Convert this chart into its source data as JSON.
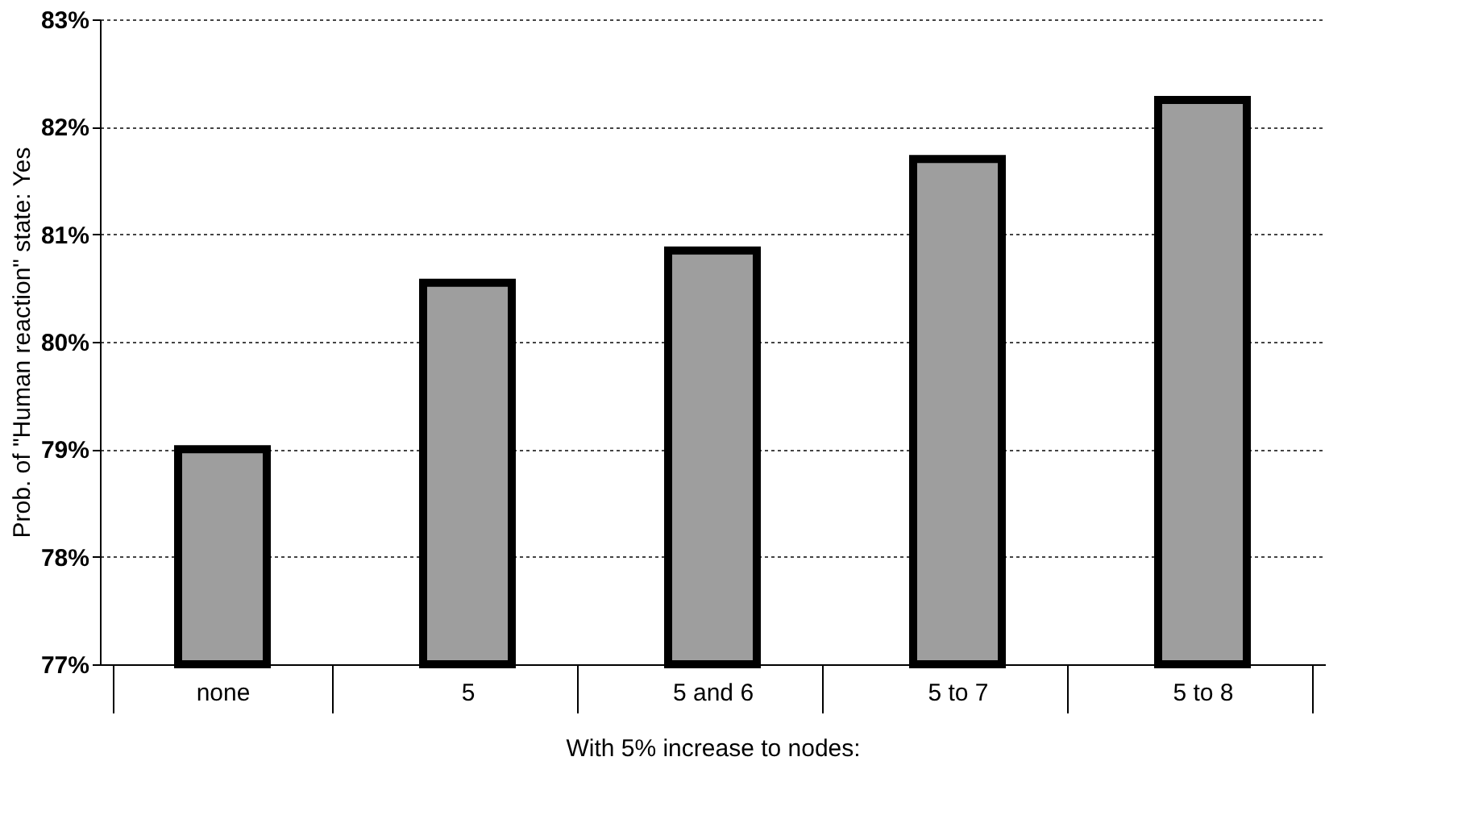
{
  "chart_data": {
    "type": "bar",
    "ylabel": "Prob. of \"Human reaction\" state: Yes",
    "xlabel": "With 5% increase to nodes:",
    "categories": [
      "none",
      "5",
      "5 and 6",
      "5 to 7",
      "5 to 8"
    ],
    "values": [
      79.0,
      80.55,
      80.85,
      81.7,
      82.25
    ],
    "color": "#9e9e9e",
    "ylim": [
      77,
      83
    ],
    "yticks": [
      {
        "value": 77,
        "label": "77%"
      },
      {
        "value": 78,
        "label": "78%"
      },
      {
        "value": 79,
        "label": "79%"
      },
      {
        "value": 80,
        "label": "80%"
      },
      {
        "value": 81,
        "label": "81%"
      },
      {
        "value": 82,
        "label": "82%"
      },
      {
        "value": 83,
        "label": "83%"
      }
    ],
    "grid": "y"
  }
}
